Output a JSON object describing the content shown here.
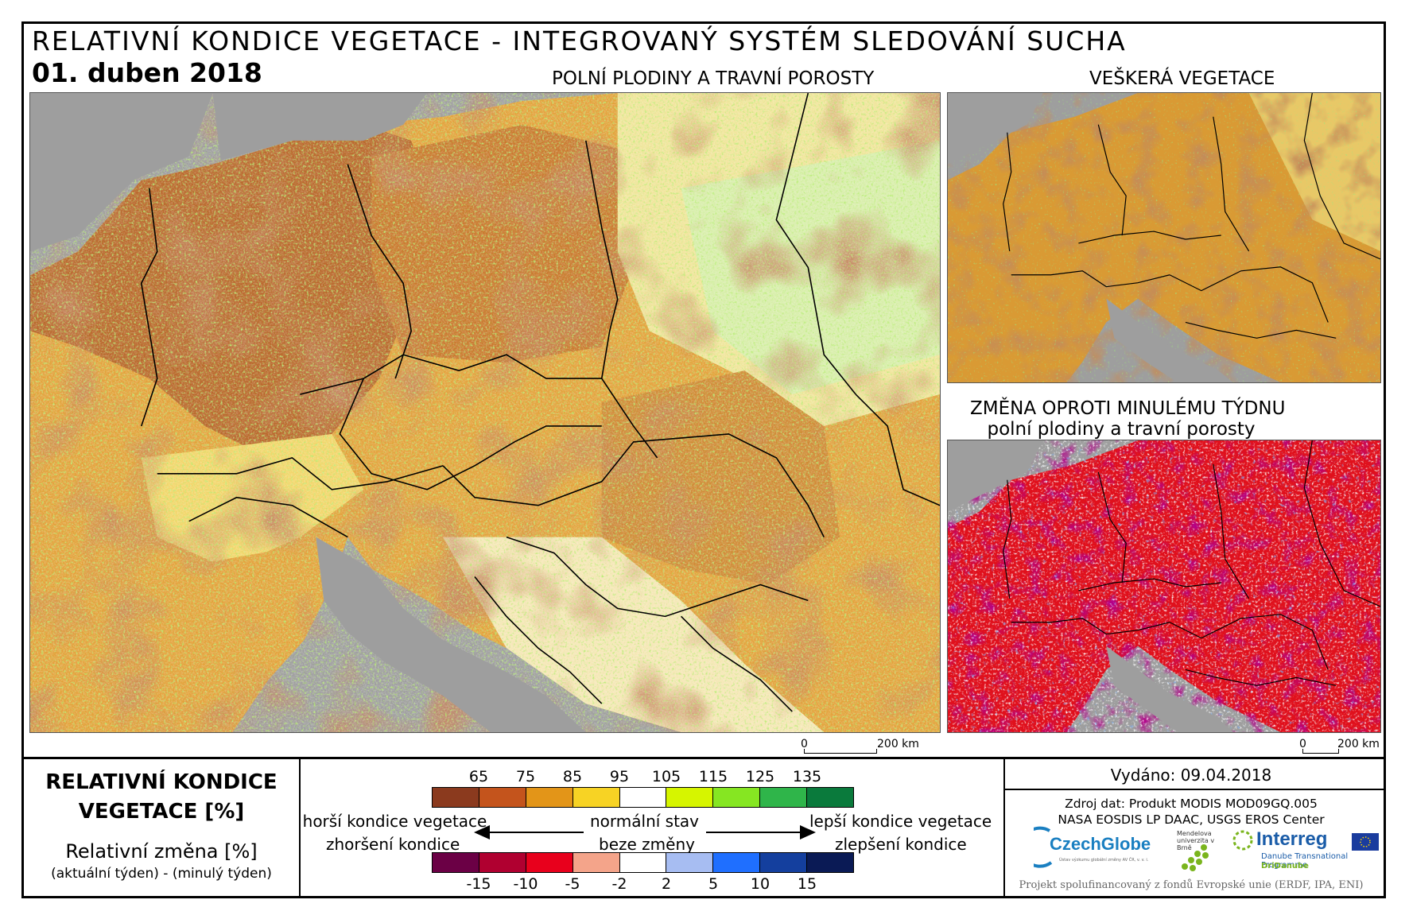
{
  "title": "RELATIVNÍ KONDICE VEGETACE - INTEGROVANÝ SYSTÉM SLEDOVÁNÍ SUCHA",
  "date": "01. duben 2018",
  "panels": {
    "main_title": "POLNÍ PLODINY A TRAVNÍ POROSTY",
    "all_veg_title": "VEŠKERÁ VEGETACE",
    "change_title_1": "ZMĚNA OPROTI MINULÉMU TÝDNU",
    "change_title_2": "polní plodiny a travní porosty"
  },
  "scale": {
    "zero": "0",
    "distance": "200 km"
  },
  "legend": {
    "title": "RELATIVNÍ KONDICE VEGETACE [%]",
    "change_title": "Relativní změna [%]",
    "change_formula": "(aktuální týden) - (minulý týden)",
    "condition_ticks": [
      "65",
      "75",
      "85",
      "95",
      "105",
      "115",
      "125",
      "135"
    ],
    "condition_colors": [
      "#8b3a1e",
      "#c4541c",
      "#e39518",
      "#f7d324",
      "#ffffff",
      "#d6f500",
      "#86e622",
      "#2fb54a",
      "#0a7a3c"
    ],
    "change_ticks": [
      "-15",
      "-10",
      "-5",
      "-2",
      "2",
      "5",
      "10",
      "15"
    ],
    "change_colors": [
      "#6b0045",
      "#b00030",
      "#e8001c",
      "#f4a48a",
      "#ffffff",
      "#a7bdf2",
      "#1f6fff",
      "#143f9e",
      "#0a1a55"
    ],
    "worse_condition": "horší kondice vegetace",
    "normal_state": "normální stav",
    "better_condition": "lepší kondice vegetace",
    "worsened": "zhoršení kondice",
    "no_change": "beze změny",
    "improved": "zlepšení kondice"
  },
  "info": {
    "issued": "Vydáno: 09.04.2018",
    "source_1": "Zdroj dat: Produkt MODIS MOD09GQ.005",
    "source_2": "NASA EOSDIS LP DAAC, USGS EROS Center",
    "footer": "Projekt spolufinancovaný z fondů Evropské unie (ERDF, IPA, ENI)"
  },
  "logos": {
    "czechglobe": "CzechGlobe",
    "czechglobe_sub": "Ústav výzkumu globální změny AV ČR, v. v. i.",
    "mendel": "Mendelova univerzita v Brně",
    "interreg": "Interreg",
    "interreg_sub": "Danube Transnational Programme",
    "dridanube": "DriDanube"
  }
}
